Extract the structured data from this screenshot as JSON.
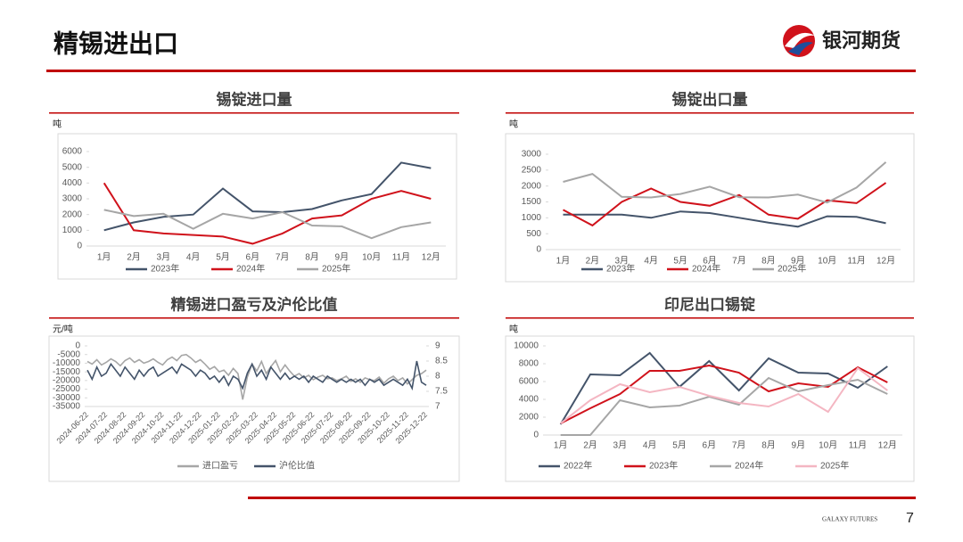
{
  "header": {
    "title": "精锡进出口",
    "logo": "银河期货"
  },
  "chart_data": [
    {
      "type": "line",
      "title": "锡锭进口量",
      "y_label": "吨",
      "categories": [
        "1月",
        "2月",
        "3月",
        "4月",
        "5月",
        "6月",
        "7月",
        "8月",
        "9月",
        "10月",
        "11月",
        "12月"
      ],
      "series": [
        {
          "name": "2023年",
          "color": "#44546a",
          "values": [
            1000,
            1500,
            1850,
            2000,
            3650,
            2200,
            2150,
            2350,
            2900,
            3300,
            5300,
            4950
          ]
        },
        {
          "name": "2024年",
          "color": "#d0121b",
          "values": [
            4000,
            1000,
            800,
            700,
            600,
            150,
            800,
            1750,
            1950,
            3000,
            3500,
            3000
          ]
        },
        {
          "name": "2025年",
          "color": "#a6a6a6",
          "values": [
            2300,
            1900,
            2050,
            1100,
            2050,
            1750,
            2150,
            1300,
            1250,
            500,
            1200,
            1500
          ]
        }
      ],
      "ylim": [
        0,
        6000
      ],
      "yticks": [
        0,
        1000,
        2000,
        3000,
        4000,
        5000,
        6000
      ],
      "legend": "bottom"
    },
    {
      "type": "line",
      "title": "锡锭出口量",
      "y_label": "吨",
      "categories": [
        "1月",
        "2月",
        "3月",
        "4月",
        "5月",
        "6月",
        "7月",
        "8月",
        "9月",
        "10月",
        "11月",
        "12月"
      ],
      "series": [
        {
          "name": "2023年",
          "color": "#44546a",
          "values": [
            1100,
            1100,
            1100,
            1000,
            1200,
            1150,
            1000,
            850,
            720,
            1050,
            1030,
            830
          ]
        },
        {
          "name": "2024年",
          "color": "#d0121b",
          "values": [
            1250,
            760,
            1500,
            1920,
            1500,
            1380,
            1720,
            1100,
            970,
            1550,
            1460,
            2100
          ]
        },
        {
          "name": "2025年",
          "color": "#a6a6a6",
          "values": [
            2130,
            2380,
            1660,
            1640,
            1750,
            1980,
            1650,
            1640,
            1730,
            1480,
            1950,
            2750
          ]
        }
      ],
      "ylim": [
        0,
        3000
      ],
      "yticks": [
        0,
        500,
        1000,
        1500,
        2000,
        2500,
        3000
      ],
      "legend": "bottom"
    },
    {
      "type": "line",
      "title": "精锡进口盈亏及沪伦比值",
      "y_label": "元/吨",
      "categories": [
        "2024-06-22",
        null,
        null,
        null,
        "2024-07-22",
        null,
        null,
        null,
        "2024-08-22",
        null,
        null,
        null,
        "2024-09-22",
        null,
        null,
        null,
        "2024-10-22",
        null,
        null,
        null,
        "2024-11-22",
        null,
        null,
        null,
        "2024-12-22",
        null,
        null,
        null,
        "2025-01-22",
        null,
        null,
        null,
        "2025-02-22",
        null,
        null,
        null,
        "2025-03-22",
        null,
        null,
        null,
        "2025-04-22",
        null,
        null,
        null,
        "2025-05-22",
        null,
        null,
        null,
        "2025-06-22",
        null,
        null,
        null,
        "2025-07-22",
        null,
        null,
        null,
        "2025-08-22",
        null,
        null,
        null,
        "2025-09-22",
        null,
        null,
        null,
        "2025-10-22",
        null,
        null,
        null,
        "2025-11-22",
        null,
        null,
        null,
        "2025-12-22"
      ],
      "series": [
        {
          "name": "进口盈亏",
          "color": "#a6a6a6",
          "values": [
            -9000,
            -10500,
            -8000,
            -11000,
            -9500,
            -7500,
            -9000,
            -11500,
            -8500,
            -7000,
            -9500,
            -8000,
            -10000,
            -9000,
            -7500,
            -9500,
            -11000,
            -8000,
            -6500,
            -8500,
            -5500,
            -5000,
            -7000,
            -9500,
            -8000,
            -10500,
            -13500,
            -12000,
            -15000,
            -14000,
            -17000,
            -13000,
            -16000,
            -31000,
            -18000,
            -10500,
            -14500,
            -9000,
            -16000,
            -12000,
            -8500,
            -15000,
            -11000,
            -14500,
            -17500,
            -16000,
            -18500,
            -17000,
            -19500,
            -18000,
            -17000,
            -19000,
            -18500,
            -20000,
            -19000,
            -17500,
            -20500,
            -19000,
            -21000,
            -18500,
            -19500,
            -20000,
            -18000,
            -21500,
            -19000,
            -17500,
            -20000,
            -18500,
            -22000,
            -19500,
            -17000,
            -16000,
            -14000
          ]
        },
        {
          "name": "沪伦比值",
          "color": "#44546a",
          "axis": "y2",
          "values": [
            8.2,
            7.9,
            8.3,
            8.0,
            8.1,
            8.4,
            8.2,
            8.0,
            8.3,
            8.1,
            7.9,
            8.2,
            8.0,
            8.2,
            8.3,
            8.0,
            8.1,
            8.2,
            8.3,
            8.1,
            8.4,
            8.3,
            8.2,
            8.0,
            8.2,
            8.1,
            7.9,
            8.0,
            7.8,
            8.0,
            7.7,
            8.0,
            7.9,
            7.6,
            8.1,
            8.4,
            8.0,
            8.2,
            7.9,
            8.3,
            8.1,
            7.9,
            8.1,
            7.9,
            8.0,
            7.9,
            8.0,
            7.8,
            8.0,
            7.9,
            7.8,
            8.0,
            7.9,
            7.8,
            7.9,
            7.8,
            7.9,
            7.8,
            7.9,
            7.7,
            7.9,
            7.8,
            7.9,
            7.7,
            7.8,
            7.9,
            7.8,
            7.7,
            7.9,
            7.6,
            8.5,
            7.8,
            7.7
          ]
        }
      ],
      "ylim": [
        -35000,
        0
      ],
      "yticks": [
        -35000,
        -30000,
        -25000,
        -20000,
        -15000,
        -10000,
        -5000,
        0
      ],
      "y2lim": [
        7,
        9
      ],
      "y2ticks": [
        7,
        7.5,
        8,
        8.5,
        9
      ],
      "legend": "bottom"
    },
    {
      "type": "line",
      "title": "印尼出口锡锭",
      "y_label": "吨",
      "categories": [
        "1月",
        "2月",
        "3月",
        "4月",
        "5月",
        "6月",
        "7月",
        "8月",
        "9月",
        "10月",
        "11月",
        "12月"
      ],
      "series": [
        {
          "name": "2022年",
          "color": "#44546a",
          "values": [
            1200,
            6800,
            6700,
            9200,
            5400,
            8300,
            5000,
            8600,
            7000,
            6900,
            5300,
            7700
          ]
        },
        {
          "name": "2023年",
          "color": "#d0121b",
          "values": [
            1300,
            3000,
            4600,
            7200,
            7200,
            7800,
            7000,
            4900,
            5800,
            5400,
            7600,
            5900
          ]
        },
        {
          "name": "2024年",
          "color": "#a6a6a6",
          "values": [
            0,
            0,
            3900,
            3100,
            3300,
            4300,
            3400,
            6400,
            4900,
            5600,
            6200,
            4600
          ]
        },
        {
          "name": "2025年",
          "color": "#f4b6c2",
          "values": [
            1300,
            3900,
            5700,
            4800,
            5400,
            4400,
            3600,
            3200,
            4600,
            2600,
            7500,
            5000
          ]
        }
      ],
      "ylim": [
        0,
        10000
      ],
      "yticks": [
        0,
        2000,
        4000,
        6000,
        8000,
        10000
      ],
      "legend": "bottom"
    }
  ],
  "footer": {
    "brand": "GALAXY FUTURES",
    "page": "7"
  }
}
